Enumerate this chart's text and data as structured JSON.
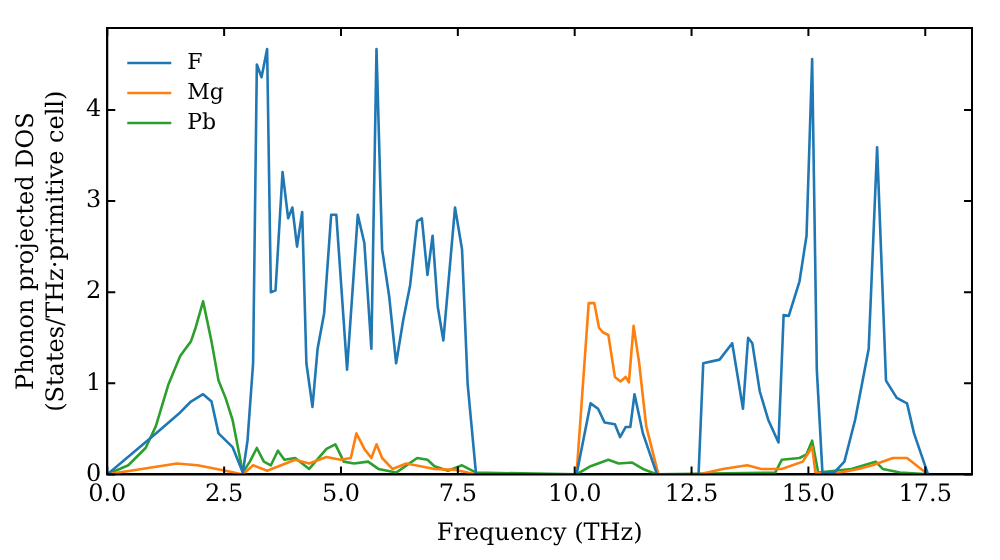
{
  "chart_data": {
    "type": "line",
    "xlabel": "Frequency (THz)",
    "ylabel": "Phonon projected DOS\n(States/THz·primitive cell)",
    "xlim": [
      0,
      18.5
    ],
    "ylim": [
      0,
      4.9
    ],
    "xticks": [
      {
        "value": 0,
        "label": "0.0"
      },
      {
        "value": 2.5,
        "label": "2.5"
      },
      {
        "value": 5,
        "label": "5.0"
      },
      {
        "value": 7.5,
        "label": "7.5"
      },
      {
        "value": 10,
        "label": "10.0"
      },
      {
        "value": 12.5,
        "label": "12.5"
      },
      {
        "value": 15,
        "label": "15.0"
      },
      {
        "value": 17.5,
        "label": "17.5"
      }
    ],
    "yticks": [
      0,
      1,
      2,
      3,
      4
    ],
    "grid": false,
    "legend": "top left",
    "marker": "none",
    "line_style": "solid",
    "series": [
      {
        "name": "F",
        "color": "#1f77b4",
        "x": [
          0,
          1.04,
          1.56,
          1.79,
          2.05,
          2.23,
          2.38,
          2.68,
          2.9,
          3.0,
          3.12,
          3.2,
          3.3,
          3.42,
          3.5,
          3.6,
          3.75,
          3.87,
          3.96,
          4.06,
          4.17,
          4.26,
          4.39,
          4.5,
          4.64,
          4.79,
          4.9,
          5.13,
          5.36,
          5.5,
          5.65,
          5.76,
          5.88,
          6.03,
          6.18,
          6.33,
          6.48,
          6.63,
          6.73,
          6.85,
          6.96,
          7.07,
          7.19,
          7.44,
          7.59,
          7.71,
          7.89,
          10.04,
          10.34,
          10.5,
          10.64,
          10.86,
          10.97,
          11.09,
          11.19,
          11.28,
          11.46,
          11.76,
          12.65,
          12.75,
          13.1,
          13.37,
          13.6,
          13.71,
          13.8,
          13.96,
          14.14,
          14.36,
          14.47,
          14.58,
          14.81,
          14.96,
          15.08,
          15.18,
          15.3,
          15.55,
          15.77,
          16.0,
          16.29,
          16.47,
          16.66,
          16.89,
          17.11,
          17.26,
          17.56
        ],
        "values": [
          0,
          0.45,
          0.68,
          0.8,
          0.88,
          0.8,
          0.45,
          0.3,
          0.02,
          0.37,
          1.22,
          4.5,
          4.36,
          4.67,
          2.0,
          2.02,
          3.32,
          2.81,
          2.93,
          2.5,
          2.88,
          1.22,
          0.74,
          1.38,
          1.77,
          2.85,
          2.85,
          1.15,
          2.85,
          2.54,
          1.38,
          4.67,
          2.47,
          1.96,
          1.22,
          1.69,
          2.08,
          2.78,
          2.81,
          2.19,
          2.62,
          1.84,
          1.47,
          2.93,
          2.47,
          0.99,
          0,
          0,
          0.78,
          0.72,
          0.57,
          0.55,
          0.41,
          0.52,
          0.52,
          0.88,
          0.45,
          0,
          0,
          1.22,
          1.26,
          1.44,
          0.72,
          1.5,
          1.44,
          0.91,
          0.6,
          0.35,
          1.75,
          1.74,
          2.12,
          2.62,
          4.56,
          1.15,
          0.02,
          0.02,
          0.14,
          0.6,
          1.38,
          3.59,
          1.03,
          0.84,
          0.78,
          0.45,
          0
        ]
      },
      {
        "name": "Mg",
        "color": "#ff7f0e",
        "x": [
          0,
          0.74,
          1.49,
          1.93,
          2.53,
          2.9,
          3.12,
          3.42,
          4.02,
          4.32,
          4.69,
          4.99,
          5.21,
          5.33,
          5.5,
          5.65,
          5.76,
          5.88,
          6.1,
          6.4,
          6.7,
          7.0,
          7.44,
          7.89,
          10.04,
          10.3,
          10.42,
          10.52,
          10.6,
          10.72,
          10.86,
          10.98,
          11.09,
          11.16,
          11.26,
          11.38,
          11.53,
          11.79,
          12.65,
          13.17,
          13.69,
          13.99,
          14.43,
          14.88,
          15.08,
          15.15,
          15.48,
          16.07,
          16.37,
          16.81,
          17.11,
          17.41,
          17.56
        ],
        "values": [
          0,
          0.06,
          0.12,
          0.1,
          0.04,
          0,
          0.1,
          0.04,
          0.16,
          0.12,
          0.19,
          0.16,
          0.18,
          0.45,
          0.28,
          0.18,
          0.33,
          0.18,
          0.06,
          0.12,
          0.09,
          0.06,
          0.05,
          0,
          0,
          1.88,
          1.88,
          1.61,
          1.56,
          1.53,
          1.07,
          1.02,
          1.07,
          1.01,
          1.63,
          1.22,
          0.53,
          0,
          0,
          0.06,
          0.1,
          0.06,
          0.06,
          0.14,
          0.3,
          0.02,
          0,
          0.06,
          0.1,
          0.18,
          0.18,
          0.06,
          0
        ]
      },
      {
        "name": "Pb",
        "color": "#2ca02c",
        "x": [
          0,
          0.45,
          0.82,
          1.04,
          1.31,
          1.56,
          1.79,
          1.89,
          2.05,
          2.23,
          2.38,
          2.53,
          2.68,
          2.9,
          3.05,
          3.2,
          3.35,
          3.5,
          3.65,
          3.79,
          4.02,
          4.32,
          4.69,
          4.88,
          5.06,
          5.28,
          5.58,
          5.8,
          6.18,
          6.63,
          6.85,
          7.0,
          7.29,
          7.59,
          7.89,
          10.04,
          10.34,
          10.72,
          10.94,
          11.23,
          11.46,
          11.76,
          14.29,
          14.43,
          14.81,
          14.96,
          15.08,
          15.21,
          15.92,
          16.44,
          16.59,
          16.96,
          17.56
        ],
        "values": [
          0,
          0.1,
          0.29,
          0.53,
          0.99,
          1.3,
          1.46,
          1.61,
          1.9,
          1.46,
          1.03,
          0.84,
          0.6,
          0.02,
          0.14,
          0.29,
          0.14,
          0.1,
          0.26,
          0.16,
          0.18,
          0.06,
          0.28,
          0.33,
          0.14,
          0.12,
          0.14,
          0.06,
          0.02,
          0.18,
          0.16,
          0.09,
          0.04,
          0.1,
          0.02,
          0,
          0.09,
          0.16,
          0.12,
          0.13,
          0.06,
          0,
          0.02,
          0.16,
          0.18,
          0.22,
          0.37,
          0.02,
          0.06,
          0.14,
          0.06,
          0.02,
          0
        ]
      }
    ]
  }
}
